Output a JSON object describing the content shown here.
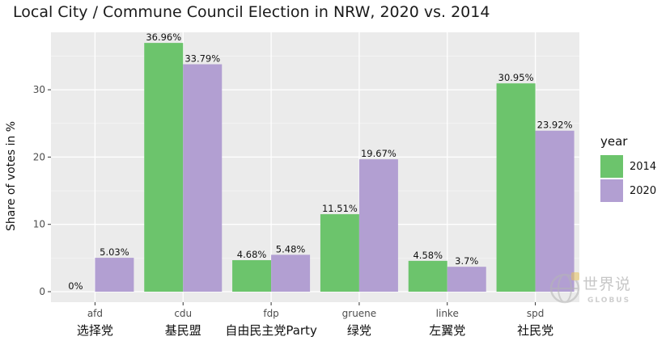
{
  "chart_data": {
    "type": "bar",
    "title": "Local City / Commune Council Election in NRW, 2020 vs. 2014",
    "xlabel": "",
    "ylabel": "Share of votes in %",
    "ylim": [
      0,
      40
    ],
    "yticks": [
      0,
      10,
      20,
      30
    ],
    "categories": [
      "afd",
      "cdu",
      "fdp",
      "gruene",
      "linke",
      "spd"
    ],
    "categories_zh": [
      "选择党",
      "基民盟",
      "自由民主党Party",
      "绿党",
      "左翼党",
      "社民党"
    ],
    "series": [
      {
        "name": "2014",
        "color": "#6cc46c",
        "values": [
          0,
          36.96,
          4.68,
          11.51,
          4.58,
          30.95
        ],
        "labels": [
          "0%",
          "36.96%",
          "4.68%",
          "11.51%",
          "4.58%",
          "30.95%"
        ]
      },
      {
        "name": "2020",
        "color": "#b29fd2",
        "values": [
          5.03,
          33.79,
          5.48,
          19.67,
          3.7,
          23.92
        ],
        "labels": [
          "5.03%",
          "33.79%",
          "5.48%",
          "19.67%",
          "3.7%",
          "23.92%"
        ]
      }
    ],
    "legend": {
      "title": "year",
      "placement": "right"
    },
    "grid": true,
    "panel_color": "#ebebeb"
  },
  "watermark": {
    "text": "世界说",
    "sub": "GLOBUS"
  }
}
